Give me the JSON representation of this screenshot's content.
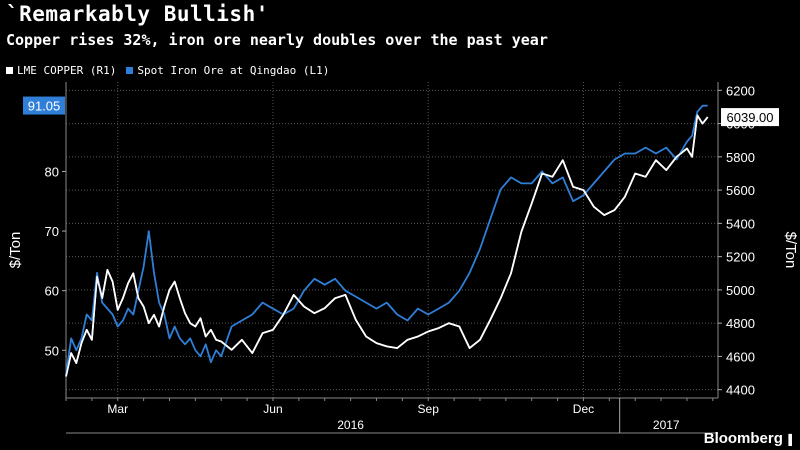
{
  "header": {
    "title": "`Remarkably Bullish'",
    "subtitle": "Copper rises 32%, iron ore nearly doubles over the past year"
  },
  "brand": {
    "name": "Bloomberg",
    "icon": "bar-chart-icon"
  },
  "chart_data": {
    "type": "line",
    "grid": true,
    "legend_placement": "top-left",
    "colors": {
      "background": "#000000",
      "copper": "#ffffff",
      "iron": "#2f7fd8",
      "grid": "#555555"
    },
    "xlim": [
      0,
      12.6
    ],
    "x_tick_labels": [
      {
        "x": 1.0,
        "label": "Mar"
      },
      {
        "x": 4.0,
        "label": "Jun"
      },
      {
        "x": 7.0,
        "label": "Sep"
      },
      {
        "x": 10.0,
        "label": "Dec"
      }
    ],
    "x_year_labels": [
      {
        "x": 5.5,
        "label": "2016"
      },
      {
        "x": 11.6,
        "label": "2017"
      }
    ],
    "x_year_boundary": 10.7,
    "left_axis": {
      "label": "$/Ton",
      "ylim": [
        42,
        95
      ],
      "ticks": [
        50,
        60,
        70,
        80
      ]
    },
    "right_axis": {
      "label": "$/Ton",
      "ylim": [
        4350,
        6250
      ],
      "ticks": [
        4400,
        4600,
        4800,
        5000,
        5200,
        5400,
        5600,
        5800,
        6000,
        6200
      ]
    },
    "callouts": {
      "iron_last": "91.05",
      "copper_last": "6039.00"
    },
    "series": [
      {
        "name": "LME COPPER  (R1)",
        "axis": "right",
        "x": [
          0.0,
          0.1,
          0.2,
          0.3,
          0.4,
          0.5,
          0.6,
          0.7,
          0.8,
          0.9,
          1.0,
          1.1,
          1.2,
          1.3,
          1.4,
          1.5,
          1.6,
          1.7,
          1.8,
          1.9,
          2.0,
          2.1,
          2.2,
          2.3,
          2.4,
          2.5,
          2.6,
          2.7,
          2.8,
          2.9,
          3.0,
          3.2,
          3.4,
          3.6,
          3.8,
          4.0,
          4.2,
          4.4,
          4.6,
          4.8,
          5.0,
          5.2,
          5.4,
          5.6,
          5.8,
          6.0,
          6.2,
          6.4,
          6.6,
          6.8,
          7.0,
          7.2,
          7.4,
          7.6,
          7.8,
          8.0,
          8.2,
          8.4,
          8.6,
          8.8,
          9.0,
          9.2,
          9.4,
          9.6,
          9.8,
          10.0,
          10.2,
          10.4,
          10.6,
          10.8,
          11.0,
          11.2,
          11.4,
          11.6,
          11.8,
          12.0,
          12.1,
          12.2,
          12.3,
          12.4
        ],
        "values": [
          4480,
          4620,
          4560,
          4680,
          4760,
          4700,
          5080,
          4950,
          5120,
          5050,
          4880,
          4950,
          5040,
          5100,
          4950,
          4900,
          4800,
          4850,
          4780,
          4900,
          5000,
          5050,
          4950,
          4860,
          4800,
          4780,
          4830,
          4720,
          4760,
          4700,
          4690,
          4640,
          4700,
          4620,
          4740,
          4760,
          4850,
          4970,
          4900,
          4860,
          4890,
          4950,
          4970,
          4820,
          4720,
          4680,
          4660,
          4650,
          4700,
          4720,
          4750,
          4770,
          4800,
          4780,
          4650,
          4700,
          4820,
          4950,
          5100,
          5350,
          5520,
          5700,
          5680,
          5780,
          5620,
          5600,
          5500,
          5450,
          5480,
          5560,
          5700,
          5680,
          5780,
          5720,
          5800,
          5850,
          5800,
          6050,
          6000,
          6039
        ]
      },
      {
        "name": "Spot Iron Ore at Qingdao   (L1)",
        "axis": "left",
        "x": [
          0.0,
          0.1,
          0.2,
          0.3,
          0.4,
          0.5,
          0.6,
          0.7,
          0.8,
          0.9,
          1.0,
          1.1,
          1.2,
          1.3,
          1.4,
          1.5,
          1.6,
          1.7,
          1.8,
          1.9,
          2.0,
          2.1,
          2.2,
          2.3,
          2.4,
          2.5,
          2.6,
          2.7,
          2.8,
          2.9,
          3.0,
          3.2,
          3.4,
          3.6,
          3.8,
          4.0,
          4.2,
          4.4,
          4.6,
          4.8,
          5.0,
          5.2,
          5.4,
          5.6,
          5.8,
          6.0,
          6.2,
          6.4,
          6.6,
          6.8,
          7.0,
          7.2,
          7.4,
          7.6,
          7.8,
          8.0,
          8.2,
          8.4,
          8.6,
          8.8,
          9.0,
          9.2,
          9.4,
          9.6,
          9.8,
          10.0,
          10.2,
          10.4,
          10.6,
          10.8,
          11.0,
          11.2,
          11.4,
          11.6,
          11.8,
          12.0,
          12.1,
          12.2,
          12.3,
          12.4
        ],
        "values": [
          46,
          52,
          50,
          52,
          56,
          55,
          63,
          58,
          57,
          56,
          54,
          55,
          57,
          56,
          60,
          64,
          70,
          63,
          58,
          56,
          52,
          54,
          52,
          51,
          52,
          50,
          49,
          51,
          48,
          50,
          49,
          54,
          55,
          56,
          58,
          57,
          56,
          57,
          60,
          62,
          61,
          62,
          60,
          59,
          58,
          57,
          58,
          56,
          55,
          57,
          56,
          57,
          58,
          60,
          63,
          67,
          72,
          77,
          79,
          78,
          78,
          80,
          78,
          79,
          75,
          76,
          78,
          80,
          82,
          83,
          83,
          84,
          83,
          84,
          82,
          85,
          86,
          90,
          91,
          91.05
        ]
      }
    ]
  }
}
